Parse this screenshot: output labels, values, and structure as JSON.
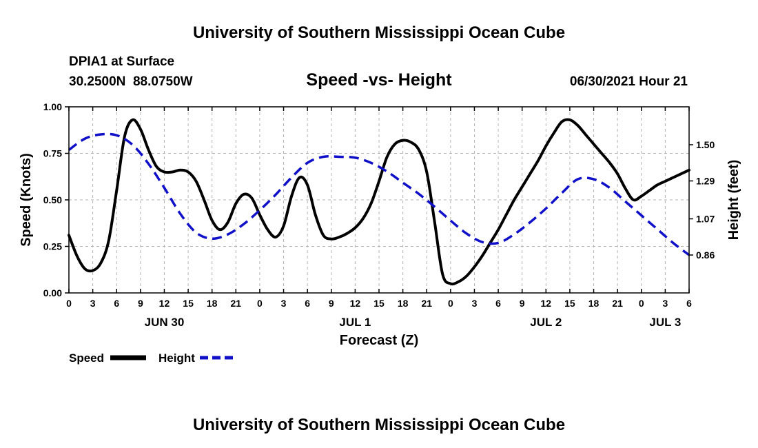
{
  "header": {
    "title": "University of Southern Mississippi Ocean Cube",
    "station": "DPIA1 at Surface",
    "coords": "30.2500N  88.0750W",
    "chart_title": "Speed -vs- Height",
    "timestamp": "06/30/2021 Hour 21"
  },
  "footer": {
    "title": "University of Southern Mississippi Ocean Cube"
  },
  "legend": {
    "speed_label": "Speed",
    "height_label": "Height"
  },
  "colors": {
    "speed": "#000000",
    "height": "#1010c8",
    "grid": "#b4b4b4"
  },
  "chart_data": {
    "type": "line",
    "xlabel": "Forecast (Z)",
    "ylabel_left": "Speed (Knots)",
    "ylabel_right": "Height (feet)",
    "xlim": [
      0,
      78
    ],
    "x_ticks": [
      0,
      3,
      6,
      9,
      12,
      15,
      18,
      21,
      24,
      27,
      30,
      33,
      36,
      39,
      42,
      45,
      48,
      51,
      54,
      57,
      60,
      63,
      66,
      69,
      72,
      75,
      78
    ],
    "x_tick_labels": [
      "0",
      "3",
      "6",
      "9",
      "12",
      "15",
      "18",
      "21",
      "0",
      "3",
      "6",
      "9",
      "12",
      "15",
      "18",
      "21",
      "0",
      "3",
      "6",
      "9",
      "12",
      "15",
      "18",
      "21",
      "0",
      "3",
      "6"
    ],
    "date_labels": [
      {
        "label": "JUN 30",
        "at": 12
      },
      {
        "label": "JUL 1",
        "at": 36
      },
      {
        "label": "JUL 2",
        "at": 60
      },
      {
        "label": "JUL 3",
        "at": 75
      }
    ],
    "ylim_left": [
      0,
      1.0
    ],
    "y_ticks_left": [
      0.0,
      0.25,
      0.5,
      0.75,
      1.0
    ],
    "y_tick_labels_left": [
      "0.00",
      "0.25",
      "0.50",
      "0.75",
      "1.00"
    ],
    "ylim_right": [
      0.64,
      1.72
    ],
    "y_ticks_right": [
      0.86,
      1.07,
      1.29,
      1.5
    ],
    "y_tick_labels_right": [
      "0.86",
      "1.07",
      "1.29",
      "1.50"
    ],
    "series": [
      {
        "name": "Speed",
        "axis": "left",
        "style": "solid",
        "x": [
          0,
          1,
          2,
          3,
          4,
          5,
          6,
          7,
          8,
          9,
          10,
          11,
          12,
          13,
          14,
          15,
          16,
          17,
          18,
          19,
          20,
          21,
          22,
          23,
          24,
          25,
          26,
          27,
          28,
          29,
          30,
          31,
          32,
          33,
          34,
          35,
          36,
          37,
          38,
          39,
          40,
          41,
          42,
          43,
          44,
          45,
          46,
          47,
          48,
          49,
          50,
          51,
          52,
          53,
          54,
          55,
          56,
          57,
          58,
          59,
          60,
          61,
          62,
          63,
          64,
          65,
          66,
          67,
          68,
          69,
          70,
          71,
          72,
          73,
          74,
          75,
          76,
          77,
          78
        ],
        "values": [
          0.31,
          0.2,
          0.13,
          0.12,
          0.16,
          0.28,
          0.55,
          0.84,
          0.93,
          0.88,
          0.77,
          0.68,
          0.65,
          0.65,
          0.66,
          0.65,
          0.6,
          0.5,
          0.39,
          0.34,
          0.38,
          0.48,
          0.53,
          0.51,
          0.42,
          0.34,
          0.3,
          0.36,
          0.52,
          0.62,
          0.58,
          0.42,
          0.31,
          0.29,
          0.3,
          0.32,
          0.35,
          0.4,
          0.48,
          0.6,
          0.73,
          0.8,
          0.82,
          0.81,
          0.77,
          0.65,
          0.38,
          0.1,
          0.05,
          0.06,
          0.09,
          0.14,
          0.2,
          0.27,
          0.34,
          0.42,
          0.5,
          0.57,
          0.64,
          0.71,
          0.79,
          0.86,
          0.92,
          0.93,
          0.9,
          0.85,
          0.8,
          0.75,
          0.7,
          0.64,
          0.56,
          0.5,
          0.52,
          0.55,
          0.58,
          0.6,
          0.62,
          0.64,
          0.66
        ]
      },
      {
        "name": "Height",
        "axis": "right",
        "style": "dashed",
        "x": [
          0,
          2,
          4,
          6,
          8,
          10,
          12,
          14,
          16,
          18,
          20,
          22,
          24,
          26,
          28,
          30,
          32,
          34,
          36,
          38,
          40,
          42,
          44,
          46,
          48,
          50,
          52,
          54,
          56,
          58,
          60,
          62,
          64,
          66,
          68,
          70,
          72,
          74,
          76,
          78
        ],
        "values": [
          1.47,
          1.535,
          1.56,
          1.555,
          1.5,
          1.39,
          1.25,
          1.1,
          0.99,
          0.955,
          0.98,
          1.04,
          1.12,
          1.21,
          1.31,
          1.395,
          1.43,
          1.43,
          1.425,
          1.395,
          1.345,
          1.28,
          1.215,
          1.14,
          1.06,
          0.985,
          0.935,
          0.93,
          0.98,
          1.05,
          1.13,
          1.22,
          1.3,
          1.3,
          1.25,
          1.17,
          1.09,
          1.01,
          0.93,
          0.86
        ]
      }
    ]
  }
}
